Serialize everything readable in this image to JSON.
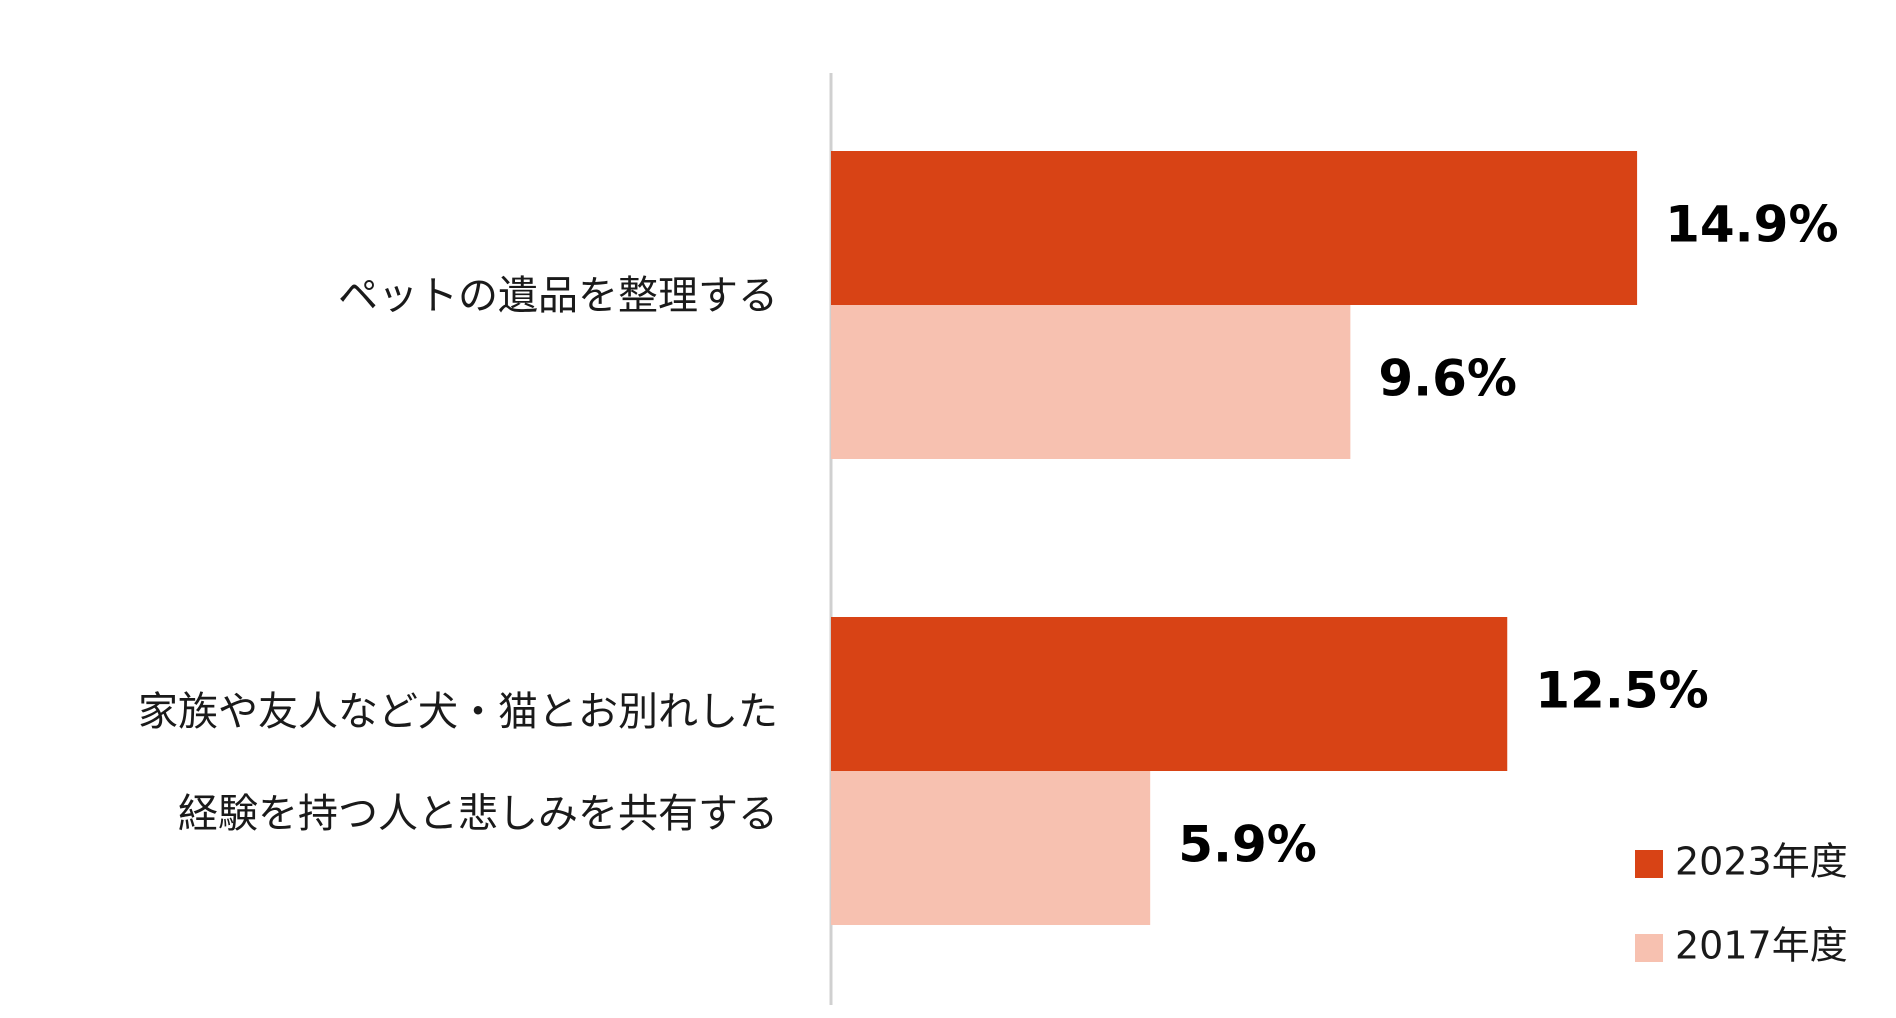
{
  "chart_data": {
    "type": "bar",
    "orientation": "horizontal",
    "categories": [
      [
        "ペットの遺品を整理する"
      ],
      [
        "家族や友人など犬・猫とお別れした",
        "経験を持つ人と悲しみを共有する"
      ]
    ],
    "series": [
      {
        "name": "2023年度",
        "values": [
          14.9,
          12.5
        ],
        "labels": [
          "14.9%",
          "12.5%"
        ],
        "color": "#d84315"
      },
      {
        "name": "2017年度",
        "values": [
          9.6,
          5.9
        ],
        "labels": [
          "9.6%",
          "5.9%"
        ],
        "color": "#f7c1b0"
      }
    ],
    "xlim": [
      0,
      20
    ],
    "grid": false,
    "legend": "bottom-right"
  }
}
